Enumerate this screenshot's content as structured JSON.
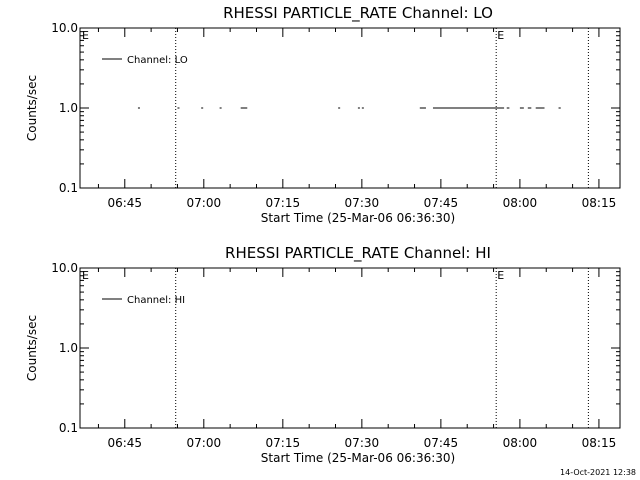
{
  "chart_data": [
    {
      "type": "line",
      "title": "RHESSI PARTICLE_RATE Channel: LO",
      "xlabel": "Start Time (25-Mar-06 06:36:30)",
      "ylabel": "Counts/sec",
      "y_scale": "log",
      "ylim": [
        0.1,
        10.0
      ],
      "y_ticks": [
        "0.1",
        "1.0",
        "10.0"
      ],
      "x_range": [
        "06:36:30",
        "08:19:00"
      ],
      "x_ticks": [
        "06:45",
        "07:00",
        "07:15",
        "07:30",
        "07:45",
        "08:00",
        "08:15"
      ],
      "legend": {
        "position": "top-left",
        "entries": [
          "Channel: LO"
        ]
      },
      "event_lines": [
        {
          "time": "06:54:40",
          "label": ""
        },
        {
          "time": "07:55:30",
          "label": "E"
        },
        {
          "time": "08:13:00",
          "label": ""
        }
      ],
      "edge_label": "E",
      "series": [
        {
          "name": "Channel: LO",
          "segments": [
            {
              "start": "06:47:30",
              "end": "06:47:50",
              "value": 1.0
            },
            {
              "start": "06:55:00",
              "end": "06:55:15",
              "value": 1.0
            },
            {
              "start": "06:59:30",
              "end": "06:59:45",
              "value": 1.0
            },
            {
              "start": "07:03:00",
              "end": "07:03:15",
              "value": 1.0
            },
            {
              "start": "07:07:00",
              "end": "07:08:15",
              "value": 1.0
            },
            {
              "start": "07:25:30",
              "end": "07:25:45",
              "value": 1.0
            },
            {
              "start": "07:29:15",
              "end": "07:29:30",
              "value": 1.0
            },
            {
              "start": "07:30:00",
              "end": "07:30:15",
              "value": 1.0
            },
            {
              "start": "07:41:00",
              "end": "07:42:10",
              "value": 1.0
            },
            {
              "start": "07:43:30",
              "end": "07:57:00",
              "value": 1.0
            },
            {
              "start": "07:57:30",
              "end": "07:58:00",
              "value": 1.0
            },
            {
              "start": "08:00:00",
              "end": "08:00:45",
              "value": 1.0
            },
            {
              "start": "08:01:30",
              "end": "08:02:10",
              "value": 1.0
            },
            {
              "start": "08:03:00",
              "end": "08:04:40",
              "value": 1.0
            },
            {
              "start": "08:07:20",
              "end": "08:07:45",
              "value": 1.0
            }
          ]
        }
      ]
    },
    {
      "type": "line",
      "title": "RHESSI PARTICLE_RATE Channel: HI",
      "xlabel": "Start Time (25-Mar-06 06:36:30)",
      "ylabel": "Counts/sec",
      "y_scale": "log",
      "ylim": [
        0.1,
        10.0
      ],
      "y_ticks": [
        "0.1",
        "1.0",
        "10.0"
      ],
      "x_range": [
        "06:36:30",
        "08:19:00"
      ],
      "x_ticks": [
        "06:45",
        "07:00",
        "07:15",
        "07:30",
        "07:45",
        "08:00",
        "08:15"
      ],
      "legend": {
        "position": "top-left",
        "entries": [
          "Channel: HI"
        ]
      },
      "event_lines": [
        {
          "time": "06:54:40",
          "label": ""
        },
        {
          "time": "07:55:30",
          "label": "E"
        },
        {
          "time": "08:13:00",
          "label": ""
        }
      ],
      "edge_label": "E",
      "series": [
        {
          "name": "Channel: HI",
          "segments": []
        }
      ]
    }
  ],
  "footer": {
    "date_stamp": "14-Oct-2021 12:38"
  }
}
